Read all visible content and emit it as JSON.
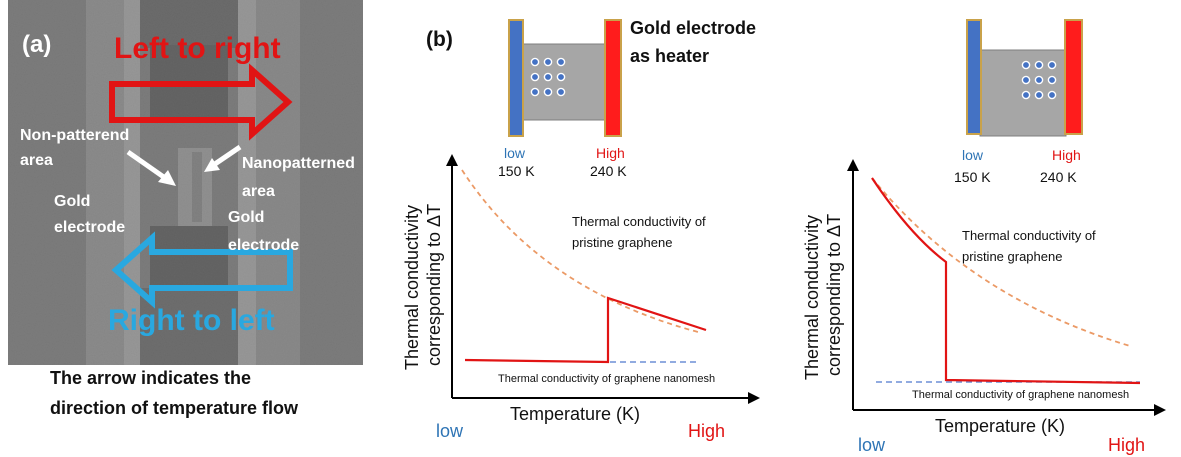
{
  "panel_a": {
    "label": "(a)",
    "arrow_top": "Left to right",
    "arrow_bottom": "Right to left",
    "non_patterned_line1": "Non-patterend",
    "non_patterned_line2": "area",
    "nanopatterned_line1": "Nanopatterned",
    "nanopatterned_line2": "area",
    "gold_left_line1": "Gold",
    "gold_left_line2": "electrode",
    "gold_right_line1": "Gold",
    "gold_right_line2": "electrode",
    "caption_line1": "The arrow indicates the",
    "caption_line2": "direction of temperature flow"
  },
  "panel_b": {
    "label": "(b)",
    "heater_line1": "Gold electrode",
    "heater_line2": "as heater",
    "electrode_low": "low",
    "electrode_high": "High",
    "temp_low": "150 K",
    "temp_high": "240 K",
    "ylabel_line1": "Thermal conductivity",
    "ylabel_line2": "corresponding to ΔT",
    "xlabel": "Temperature (K)",
    "x_low": "low",
    "x_high": "High",
    "pristine_line1": "Thermal conductivity of",
    "pristine_line2": "pristine graphene",
    "nanomesh": "Thermal conductivity of graphene nanomesh"
  },
  "colors": {
    "red": "#e11414",
    "blue_arrow": "#29a8e0",
    "blue_electrode": "#3f6fc4",
    "orange_dashed": "#eb9a66",
    "blue_dashed": "#6d8fd6",
    "sem_gray": "#707070"
  }
}
